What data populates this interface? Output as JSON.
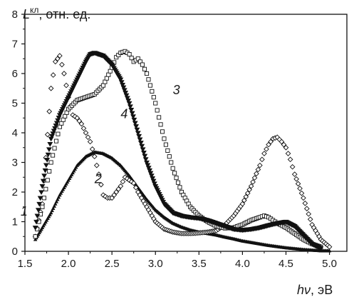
{
  "chart_data": {
    "type": "scatter",
    "xlabel": {
      "main": "hν",
      "unit": ", эВ"
    },
    "ylabel": {
      "main": "L",
      "sup": "кл",
      "unit": ", отн. ед."
    },
    "xlim": [
      1.5,
      5.2
    ],
    "ylim": [
      0,
      8
    ],
    "xticks": [
      "1.5",
      "2.0",
      "2.5",
      "3.0",
      "3.5",
      "4.0",
      "4.5",
      "5.0"
    ],
    "yticks": [
      "0",
      "1",
      "2",
      "3",
      "4",
      "5",
      "6",
      "7",
      "8"
    ],
    "grid": false,
    "series": [
      {
        "name": "1",
        "marker": "triangle-small",
        "color": "#111111",
        "label_at": [
          1.45,
          1.2
        ],
        "x": [
          1.62,
          1.7,
          1.8,
          1.9,
          2.0,
          2.1,
          2.2,
          2.3,
          2.4,
          2.5,
          2.6,
          2.7,
          2.8,
          2.9,
          3.0,
          3.1,
          3.2,
          3.3,
          3.4,
          3.5,
          3.6,
          3.7,
          3.8,
          3.9,
          4.0,
          4.1,
          4.2,
          4.3,
          4.4,
          4.5,
          4.6,
          4.7,
          4.8,
          4.9,
          5.0
        ],
        "y": [
          0.4,
          0.8,
          1.3,
          1.9,
          2.4,
          2.9,
          3.2,
          3.35,
          3.3,
          3.15,
          2.9,
          2.55,
          2.15,
          1.75,
          1.4,
          1.15,
          0.95,
          0.82,
          0.72,
          0.65,
          0.6,
          0.55,
          0.48,
          0.42,
          0.35,
          0.3,
          0.25,
          0.2,
          0.16,
          0.12,
          0.09,
          0.06,
          0.04,
          0.02,
          0.02
        ]
      },
      {
        "name": "2",
        "marker": "diamond",
        "color": "#111111",
        "label_at": [
          2.3,
          2.3
        ],
        "x": [
          1.62,
          1.7,
          1.8,
          1.85,
          1.9,
          1.95,
          2.0,
          2.05,
          2.1,
          2.15,
          2.2,
          2.25,
          2.3,
          2.35,
          2.4,
          2.45,
          2.5,
          2.55,
          2.6,
          2.65,
          2.7,
          2.75,
          2.8,
          2.9,
          3.0,
          3.1,
          3.2,
          3.3,
          3.4,
          3.5,
          3.6,
          3.7,
          3.8,
          3.9,
          4.0,
          4.1,
          4.2,
          4.25,
          4.3,
          4.35,
          4.4,
          4.45,
          4.5,
          4.55,
          4.6,
          4.7,
          4.8,
          4.9,
          5.0
        ],
        "y": [
          0.5,
          1.6,
          5.5,
          6.4,
          6.6,
          6.0,
          5.2,
          4.6,
          4.5,
          4.3,
          4.0,
          3.7,
          3.2,
          2.6,
          1.9,
          1.8,
          1.8,
          2.0,
          2.2,
          2.5,
          2.4,
          2.3,
          2.0,
          1.5,
          1.0,
          0.75,
          0.65,
          0.6,
          0.6,
          0.62,
          0.65,
          0.7,
          0.9,
          1.2,
          1.6,
          2.2,
          2.9,
          3.3,
          3.6,
          3.8,
          3.85,
          3.7,
          3.5,
          3.1,
          2.6,
          1.8,
          0.9,
          0.4,
          0.15
        ]
      },
      {
        "name": "3",
        "marker": "square",
        "color": "#111111",
        "label_at": [
          3.2,
          5.3
        ],
        "x": [
          1.62,
          1.7,
          1.8,
          1.9,
          2.0,
          2.1,
          2.2,
          2.3,
          2.4,
          2.5,
          2.55,
          2.6,
          2.65,
          2.7,
          2.75,
          2.8,
          2.85,
          2.9,
          3.0,
          3.1,
          3.2,
          3.3,
          3.4,
          3.5,
          3.6,
          3.7,
          3.8,
          3.9,
          4.0,
          4.1,
          4.2,
          4.25,
          4.3,
          4.35,
          4.4,
          4.5,
          4.6,
          4.7,
          4.8,
          4.9
        ],
        "y": [
          0.5,
          1.5,
          3.0,
          4.2,
          4.8,
          5.1,
          5.2,
          5.3,
          5.6,
          6.2,
          6.55,
          6.7,
          6.75,
          6.65,
          6.4,
          6.5,
          6.3,
          6.0,
          5.0,
          3.8,
          2.8,
          2.0,
          1.5,
          1.2,
          1.0,
          0.85,
          0.78,
          0.8,
          0.9,
          1.05,
          1.15,
          1.2,
          1.15,
          1.05,
          0.95,
          0.8,
          0.6,
          0.4,
          0.25,
          0.15
        ]
      },
      {
        "name": "4",
        "marker": "triangle-down",
        "color": "#111111",
        "label_at": [
          2.6,
          4.5
        ],
        "x": [
          1.62,
          1.7,
          1.8,
          1.9,
          2.0,
          2.1,
          2.2,
          2.25,
          2.3,
          2.35,
          2.4,
          2.5,
          2.6,
          2.7,
          2.8,
          2.9,
          3.0,
          3.1,
          3.2,
          3.3,
          3.4,
          3.5,
          3.6,
          3.7,
          3.8,
          3.9,
          4.0,
          4.1,
          4.2,
          4.3,
          4.4,
          4.5,
          4.6,
          4.7,
          4.8,
          4.9
        ],
        "y": [
          0.8,
          2.2,
          3.8,
          4.6,
          5.2,
          5.8,
          6.4,
          6.65,
          6.7,
          6.65,
          6.6,
          6.3,
          5.8,
          5.0,
          4.0,
          3.0,
          2.2,
          1.6,
          1.3,
          1.2,
          1.15,
          1.12,
          1.05,
          0.95,
          0.85,
          0.75,
          0.72,
          0.75,
          0.8,
          0.88,
          0.95,
          1.0,
          0.85,
          0.55,
          0.25,
          0.1
        ]
      }
    ]
  }
}
